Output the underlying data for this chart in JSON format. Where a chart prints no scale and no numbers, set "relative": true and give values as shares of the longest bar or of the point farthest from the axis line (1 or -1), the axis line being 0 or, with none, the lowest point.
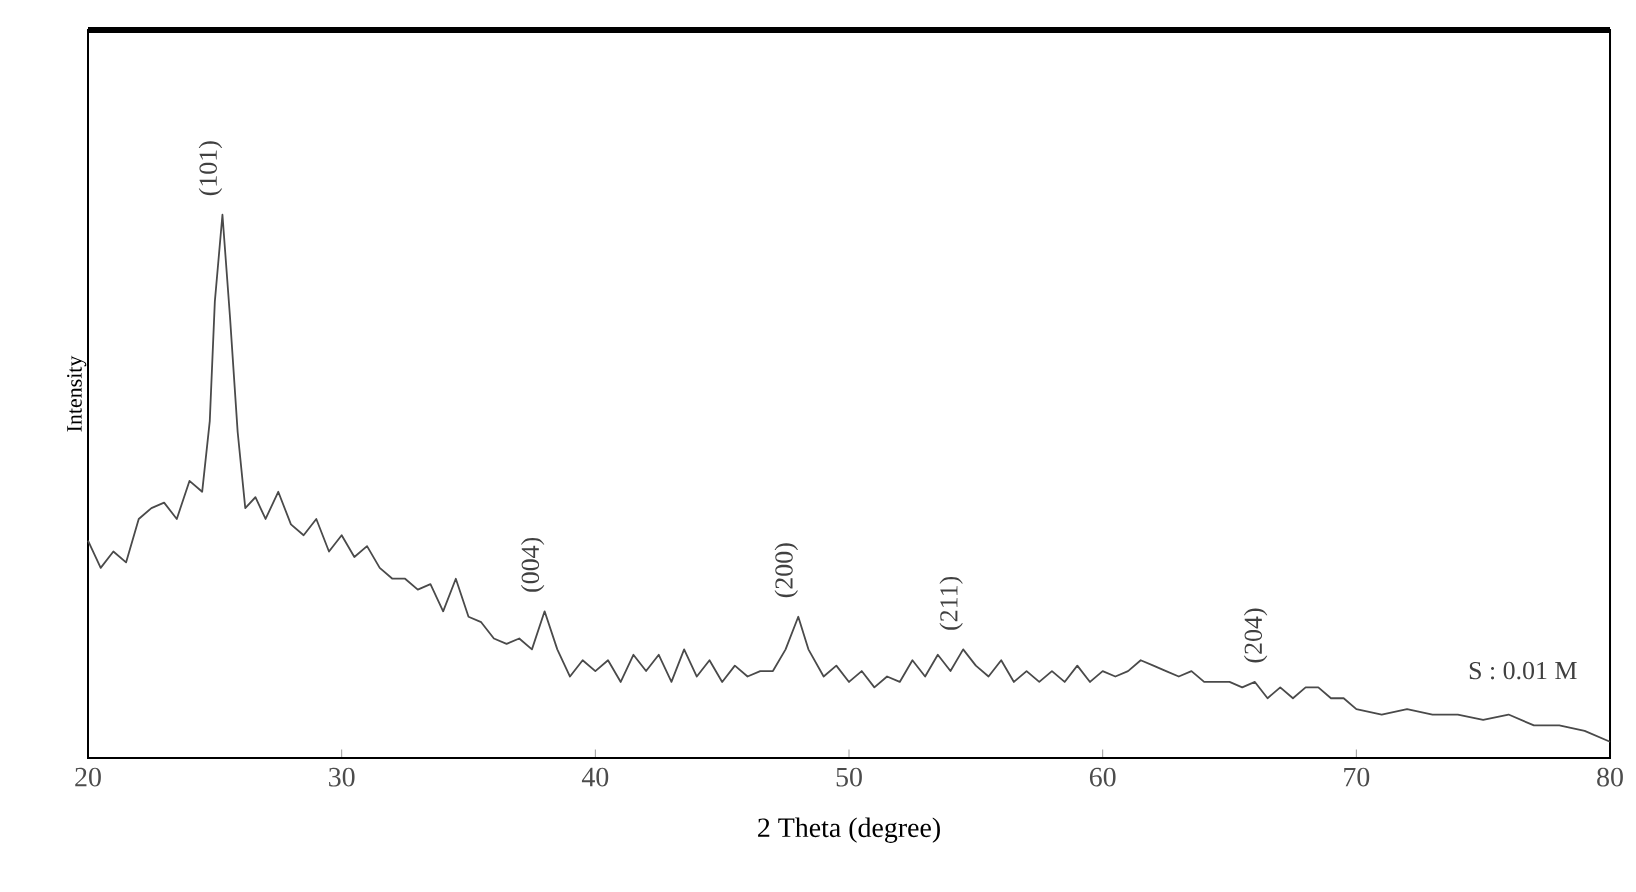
{
  "chart_data": {
    "type": "line",
    "relative": true,
    "xlabel": "2 Theta (degree)",
    "ylabel": "Intensity",
    "xlim": [
      20,
      80
    ],
    "xticks": [
      20,
      30,
      40,
      50,
      60,
      70,
      80
    ],
    "marker": "none",
    "line_style": "solid",
    "series": [
      {
        "color": "#4a4a4a",
        "x": [
          20,
          20.5,
          21,
          21.5,
          22,
          22.5,
          23,
          23.5,
          24,
          24.5,
          24.8,
          25.0,
          25.3,
          25.6,
          25.9,
          26.2,
          26.6,
          27,
          27.5,
          28,
          28.5,
          29,
          29.5,
          30,
          30.5,
          31,
          31.5,
          32,
          32.5,
          33,
          33.5,
          34,
          34.5,
          35,
          35.5,
          36,
          36.5,
          37,
          37.5,
          38,
          38.5,
          39,
          39.5,
          40,
          40.5,
          41,
          41.5,
          42,
          42.5,
          43,
          43.5,
          44,
          44.5,
          45,
          45.5,
          46,
          46.5,
          47,
          47.5,
          48,
          48.4,
          49,
          49.5,
          50,
          50.5,
          51,
          51.5,
          52,
          52.5,
          53,
          53.5,
          54,
          54.5,
          55,
          55.5,
          56,
          56.5,
          57,
          57.5,
          58,
          58.5,
          59,
          59.5,
          60,
          60.5,
          61,
          61.5,
          62,
          62.5,
          63,
          63.5,
          64,
          64.5,
          65,
          65.5,
          66,
          66.5,
          67,
          67.5,
          68,
          68.5,
          69,
          69.5,
          70,
          71,
          72,
          73,
          74,
          75,
          76,
          77,
          78,
          79,
          80
        ],
        "values": [
          0.4,
          0.35,
          0.38,
          0.36,
          0.44,
          0.46,
          0.47,
          0.44,
          0.51,
          0.49,
          0.62,
          0.84,
          1.0,
          0.81,
          0.6,
          0.46,
          0.48,
          0.44,
          0.49,
          0.43,
          0.41,
          0.44,
          0.38,
          0.41,
          0.37,
          0.39,
          0.35,
          0.33,
          0.33,
          0.31,
          0.32,
          0.27,
          0.33,
          0.26,
          0.25,
          0.22,
          0.21,
          0.22,
          0.2,
          0.27,
          0.2,
          0.15,
          0.18,
          0.16,
          0.18,
          0.14,
          0.19,
          0.16,
          0.19,
          0.14,
          0.2,
          0.15,
          0.18,
          0.14,
          0.17,
          0.15,
          0.16,
          0.16,
          0.2,
          0.26,
          0.2,
          0.15,
          0.17,
          0.14,
          0.16,
          0.13,
          0.15,
          0.14,
          0.18,
          0.15,
          0.19,
          0.16,
          0.2,
          0.17,
          0.15,
          0.18,
          0.14,
          0.16,
          0.14,
          0.16,
          0.14,
          0.17,
          0.14,
          0.16,
          0.15,
          0.16,
          0.18,
          0.17,
          0.16,
          0.15,
          0.16,
          0.14,
          0.14,
          0.14,
          0.13,
          0.14,
          0.11,
          0.13,
          0.11,
          0.13,
          0.13,
          0.11,
          0.11,
          0.09,
          0.08,
          0.09,
          0.08,
          0.08,
          0.07,
          0.08,
          0.06,
          0.06,
          0.05,
          0.03
        ]
      }
    ],
    "annotations": [
      {
        "text": "(101)",
        "x": 25.3,
        "y": 1.0
      },
      {
        "text": "(004)",
        "x": 38,
        "y": 0.27
      },
      {
        "text": "(200)",
        "x": 48,
        "y": 0.26
      },
      {
        "text": "(211)",
        "x": 54.5,
        "y": 0.2
      },
      {
        "text": "(204)",
        "x": 66.5,
        "y": 0.14
      },
      "S : 0.01 M"
    ]
  }
}
